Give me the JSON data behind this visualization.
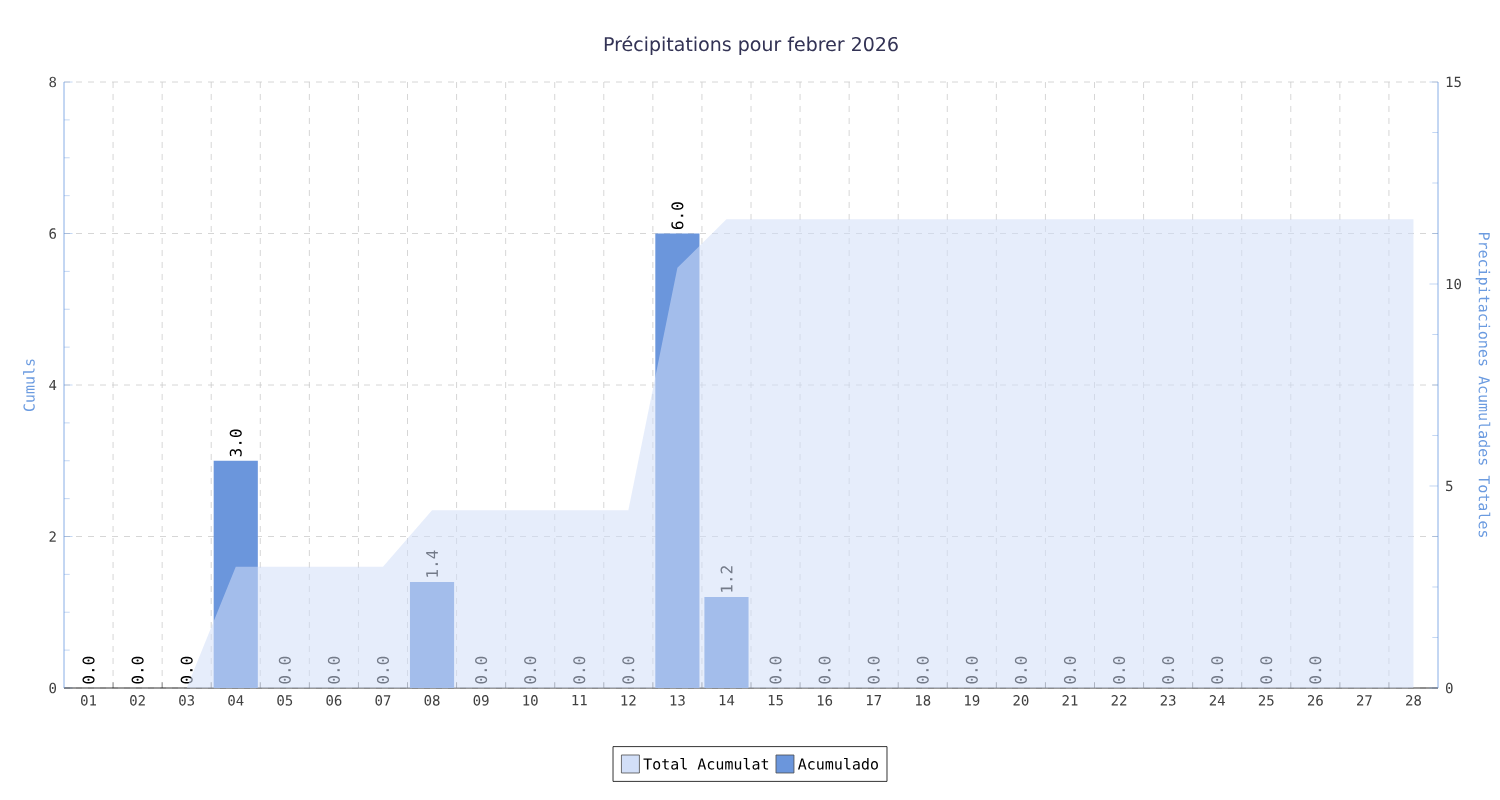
{
  "chart_data": {
    "type": "bar",
    "title": "Précipitations pour febrer 2026",
    "ylabel": "Cumuls",
    "y2label": "Precipitaciones Acumulades Totales",
    "categories": [
      "01",
      "02",
      "03",
      "04",
      "05",
      "06",
      "07",
      "08",
      "09",
      "10",
      "11",
      "12",
      "13",
      "14",
      "15",
      "16",
      "17",
      "18",
      "19",
      "20",
      "21",
      "22",
      "23",
      "24",
      "25",
      "26",
      "27",
      "28"
    ],
    "series": [
      {
        "name": "Total Acumulat",
        "type": "area",
        "axis": "y2",
        "color": "#d2dff8",
        "values": [
          0,
          0,
          0,
          3.0,
          3.0,
          3.0,
          3.0,
          4.4,
          4.4,
          4.4,
          4.4,
          4.4,
          10.4,
          11.6,
          11.6,
          11.6,
          11.6,
          11.6,
          11.6,
          11.6,
          11.6,
          11.6,
          11.6,
          11.6,
          11.6,
          11.6,
          11.6,
          11.6
        ]
      },
      {
        "name": "Acumulado",
        "color": "#6b96dc",
        "values": [
          0,
          0,
          0,
          3.0,
          0,
          0,
          0,
          1.4,
          0,
          0,
          0,
          0,
          6.0,
          1.2,
          0,
          0,
          0,
          0,
          0,
          0,
          0,
          0,
          0,
          0,
          0,
          0,
          null,
          null
        ],
        "value_labels": [
          "0.0",
          "0.0",
          "0.0",
          "3.0",
          "0.0",
          "0.0",
          "0.0",
          "1.4",
          "0.0",
          "0.0",
          "0.0",
          "0.0",
          "6.0",
          "1.2",
          "0.0",
          "0.0",
          "0.0",
          "0.0",
          "0.0",
          "0.0",
          "0.0",
          "0.0",
          "0.0",
          "0.0",
          "0.0",
          "0.0",
          null,
          null
        ]
      }
    ],
    "ylim": [
      0,
      8
    ],
    "yticks": [
      0,
      2,
      4,
      6,
      8
    ],
    "y2lim": [
      0,
      15
    ],
    "y2ticks": [
      0,
      5,
      10,
      15
    ],
    "grid": true,
    "legend": "bottom"
  }
}
